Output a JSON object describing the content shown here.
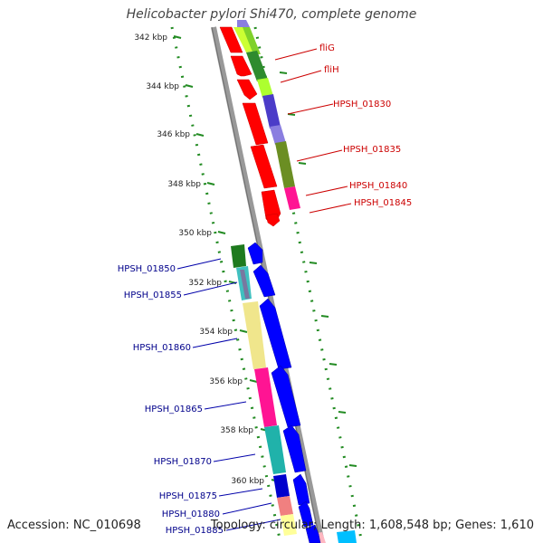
{
  "title": "Helicobacter pylori Shi470, complete genome",
  "footer": {
    "accession": "Accession: NC_010698",
    "topology": "Topology: circular; Length: 1,608,548 bp; Genes: 1,610"
  },
  "scale": {
    "ticks": [
      "342 kbp",
      "344 kbp",
      "346 kbp",
      "348 kbp",
      "350 kbp",
      "352 kbp",
      "354 kbp",
      "356 kbp",
      "358 kbp",
      "360 kbp"
    ]
  },
  "genes": {
    "top": [
      "fliG",
      "fliH",
      "HPSH_01830",
      "HPSH_01835",
      "HPSH_01840",
      "HPSH_01845"
    ],
    "bottom": [
      "HPSH_01850",
      "HPSH_01855",
      "HPSH_01860",
      "HPSH_01865",
      "HPSH_01870",
      "HPSH_01875",
      "HPSH_01880",
      "HPSH_01885"
    ]
  },
  "colors": {
    "top_label": "#cc0000",
    "bottom_label": "#00008b",
    "forward_gene": "#ff0000",
    "reverse_gene": "#0000ff",
    "backbone": "#8c8c8c",
    "gc_dots": "#228b22"
  }
}
